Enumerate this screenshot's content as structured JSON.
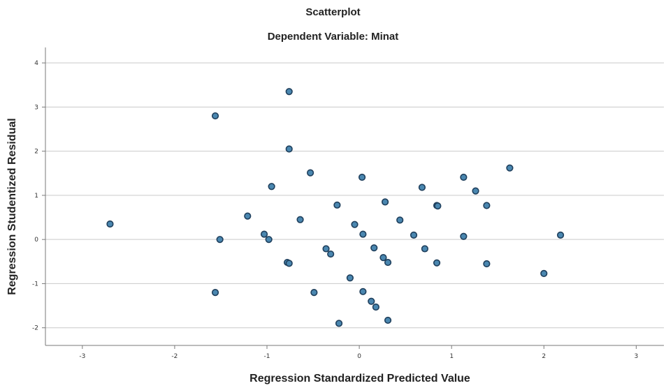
{
  "chart_data": {
    "type": "scatter",
    "title": "Scatterplot",
    "subtitle": "Dependent Variable: Minat",
    "xlabel": "Regression Standardized Predicted Value",
    "ylabel": "Regression Studentized Residual",
    "xlim": [
      -3.4,
      3.3
    ],
    "ylim": [
      -2.4,
      4.35
    ],
    "xticks": [
      -3,
      -2,
      -1,
      0,
      1,
      2,
      3
    ],
    "yticks": [
      -2,
      -1,
      0,
      1,
      2,
      3,
      4
    ],
    "grid": "horizontal",
    "point_color": "#4a87b0",
    "point_edge_color": "#1f3f5c",
    "points": [
      {
        "x": -2.7,
        "y": 0.35
      },
      {
        "x": -1.56,
        "y": 2.8
      },
      {
        "x": -1.56,
        "y": -1.2
      },
      {
        "x": -1.51,
        "y": 0.0
      },
      {
        "x": -1.21,
        "y": 0.53
      },
      {
        "x": -1.03,
        "y": 0.12
      },
      {
        "x": -0.98,
        "y": 0.0
      },
      {
        "x": -0.95,
        "y": 1.2
      },
      {
        "x": -0.78,
        "y": -0.52
      },
      {
        "x": -0.76,
        "y": -0.54
      },
      {
        "x": -0.76,
        "y": 3.35
      },
      {
        "x": -0.76,
        "y": 2.05
      },
      {
        "x": -0.64,
        "y": 0.45
      },
      {
        "x": -0.53,
        "y": 1.51
      },
      {
        "x": -0.49,
        "y": -1.2
      },
      {
        "x": -0.36,
        "y": -0.21
      },
      {
        "x": -0.31,
        "y": -0.33
      },
      {
        "x": -0.24,
        "y": 0.78
      },
      {
        "x": -0.22,
        "y": -1.9
      },
      {
        "x": -0.1,
        "y": -0.87
      },
      {
        "x": -0.05,
        "y": 0.34
      },
      {
        "x": 0.03,
        "y": 1.41
      },
      {
        "x": 0.04,
        "y": 0.12
      },
      {
        "x": 0.04,
        "y": -1.18
      },
      {
        "x": 0.13,
        "y": -1.4
      },
      {
        "x": 0.16,
        "y": -0.19
      },
      {
        "x": 0.18,
        "y": -1.53
      },
      {
        "x": 0.26,
        "y": -0.41
      },
      {
        "x": 0.28,
        "y": 0.85
      },
      {
        "x": 0.31,
        "y": -0.52
      },
      {
        "x": 0.31,
        "y": -1.83
      },
      {
        "x": 0.44,
        "y": 0.44
      },
      {
        "x": 0.59,
        "y": 0.1
      },
      {
        "x": 0.68,
        "y": 1.18
      },
      {
        "x": 0.71,
        "y": -0.21
      },
      {
        "x": 0.84,
        "y": 0.77
      },
      {
        "x": 0.85,
        "y": 0.76
      },
      {
        "x": 0.84,
        "y": -0.53
      },
      {
        "x": 1.13,
        "y": 1.41
      },
      {
        "x": 1.13,
        "y": 0.07
      },
      {
        "x": 1.26,
        "y": 1.1
      },
      {
        "x": 1.38,
        "y": 0.77
      },
      {
        "x": 1.38,
        "y": -0.55
      },
      {
        "x": 1.63,
        "y": 1.62
      },
      {
        "x": 2.0,
        "y": -0.77
      },
      {
        "x": 2.18,
        "y": 0.1
      }
    ]
  }
}
